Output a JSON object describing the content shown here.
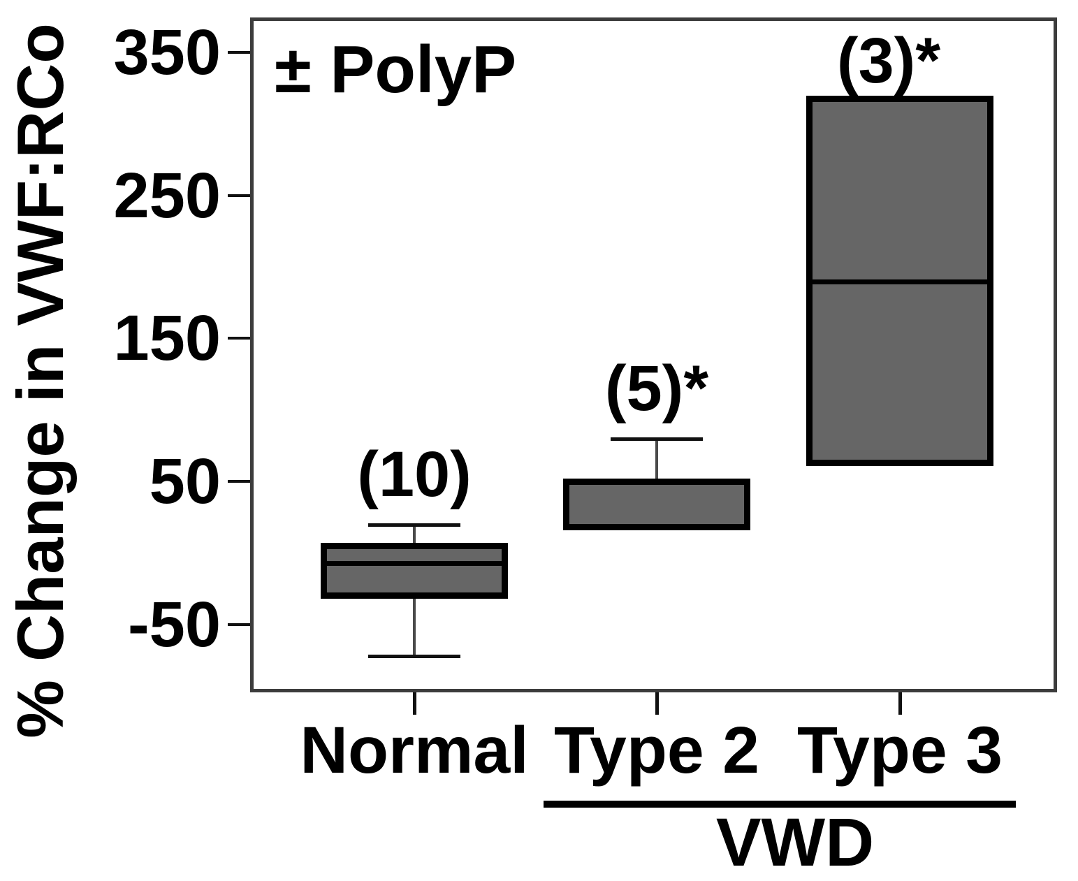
{
  "chart_data": {
    "type": "boxplot",
    "title": "",
    "xlabel": "",
    "ylabel": "% Change in VWF:RCo",
    "annotation": "± PolyP",
    "ylim": [
      -95,
      372
    ],
    "yticks": [
      350,
      250,
      150,
      50,
      -50
    ],
    "grid": false,
    "categories": [
      "Normal",
      "Type 2",
      "Type 3"
    ],
    "group": {
      "label": "VWD",
      "members": [
        "Type 2",
        "Type 3"
      ]
    },
    "series": [
      {
        "category": "Normal",
        "n": 10,
        "n_label": "(10)",
        "significant": false,
        "whisker_low": -72,
        "q1": -30,
        "median": -7,
        "q3": 5,
        "whisker_high": 20
      },
      {
        "category": "Type 2",
        "n": 5,
        "n_label": "(5)*",
        "significant": true,
        "whisker_low": null,
        "q1": 18,
        "median": 18,
        "q3": 50,
        "whisker_high": 80
      },
      {
        "category": "Type 3",
        "n": 3,
        "n_label": "(3)*",
        "significant": true,
        "whisker_low": null,
        "q1": 63,
        "median": 190,
        "q3": 318,
        "whisker_high": null
      }
    ],
    "colors": {
      "box_fill": "#666666",
      "box_border": "#000000",
      "frame": "#3c3c3c",
      "whisker": "#4a4a4a",
      "text": "#000000"
    }
  }
}
